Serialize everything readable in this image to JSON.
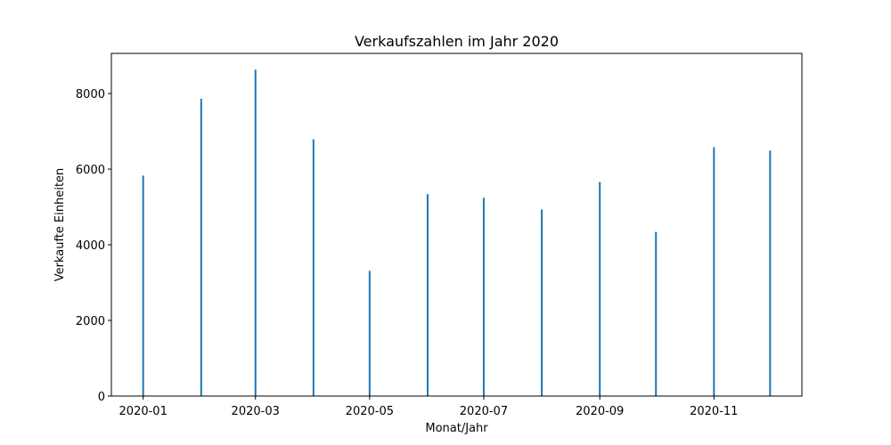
{
  "chart_data": {
    "type": "bar",
    "title": "Verkaufszahlen im Jahr 2020",
    "xlabel": "Monat/Jahr",
    "ylabel": "Verkaufte Einheiten",
    "x": [
      "2020-01-01",
      "2020-02-01",
      "2020-03-01",
      "2020-04-01",
      "2020-05-01",
      "2020-06-01",
      "2020-07-01",
      "2020-08-01",
      "2020-09-01",
      "2020-10-01",
      "2020-11-01",
      "2020-12-01"
    ],
    "values": [
      5830,
      7860,
      8630,
      6790,
      3310,
      5340,
      5240,
      4930,
      5660,
      4340,
      6580,
      6490
    ],
    "xlim": [
      "2019-12-15",
      "2020-12-18"
    ],
    "ylim": [
      0,
      9060
    ],
    "x_ticks": [
      "2020-01",
      "2020-03",
      "2020-05",
      "2020-07",
      "2020-09",
      "2020-11"
    ],
    "y_ticks": [
      0,
      2000,
      4000,
      6000,
      8000
    ],
    "bar_color": "#1f77b4",
    "grid": false,
    "legend": "none"
  }
}
